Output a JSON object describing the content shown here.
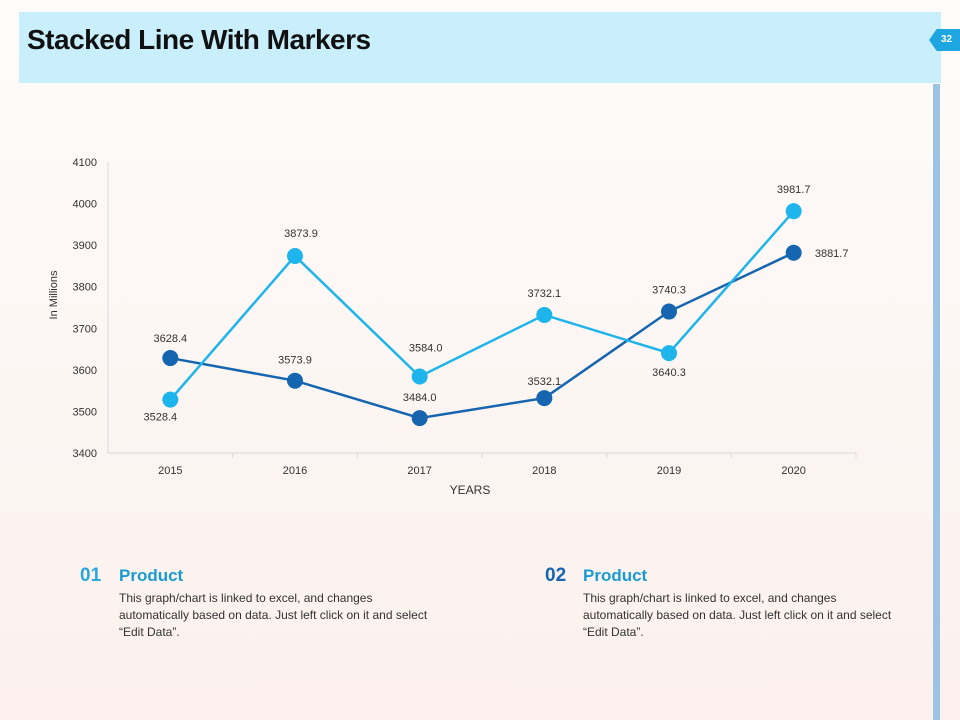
{
  "header": {
    "title": "Stacked Line With Markers",
    "page_number": "32"
  },
  "chart_data": {
    "type": "line",
    "categories": [
      "2015",
      "2016",
      "2017",
      "2018",
      "2019",
      "2020"
    ],
    "series": [
      {
        "color": "#1565b0",
        "values": [
          3628.4,
          3573.9,
          3484.0,
          3532.1,
          3740.3,
          3881.7
        ],
        "labels": [
          "3628.4",
          "3573.9",
          "3484.0",
          "3532.1",
          "3740.3",
          "3881.7"
        ]
      },
      {
        "color": "#1eb4ec",
        "values": [
          3528.4,
          3873.9,
          3584.0,
          3732.1,
          3640.3,
          3981.7
        ],
        "labels": [
          "3528.4",
          "3873.9",
          "3584.0",
          "3732.1",
          "3640.3",
          "3981.7"
        ]
      }
    ],
    "xlabel": "YEARS",
    "ylabel": "In Millions",
    "ylim": [
      3400,
      4100
    ],
    "yticks": [
      "3400",
      "3500",
      "3600",
      "3700",
      "3800",
      "3900",
      "4000",
      "4100"
    ],
    "grid": false,
    "markers": true
  },
  "products": [
    {
      "number": "01",
      "title": "Product",
      "description": "This graph/chart is linked to excel, and changes automatically based on data. Just left click on it and select “Edit Data”.",
      "color": "#29a8db"
    },
    {
      "number": "02",
      "title": "Product",
      "description": "This graph/chart is linked to excel, and changes automatically based on data. Just left click on it and select “Edit Data”.",
      "color": "#1565b0"
    }
  ]
}
